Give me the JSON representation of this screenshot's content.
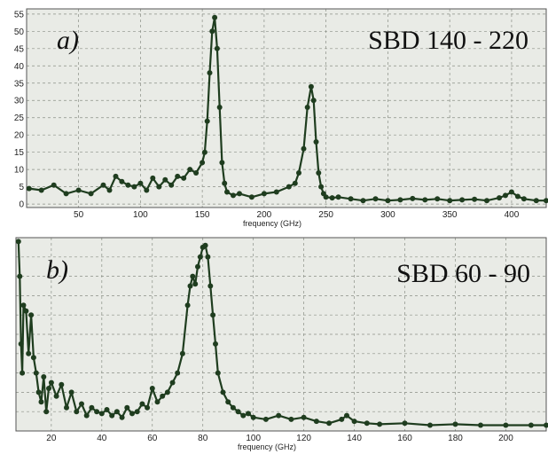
{
  "chart_data": [
    {
      "type": "scatter",
      "panel_label": "a)",
      "title": "SBD 140 - 220",
      "xlabel": "frequency (GHz)",
      "ylabel": "",
      "xlim": [
        8,
        428
      ],
      "ylim": [
        -1,
        56.5
      ],
      "xticks": [
        50,
        100,
        150,
        200,
        250,
        300,
        350,
        400
      ],
      "yticks": [
        0,
        5,
        10,
        15,
        20,
        25,
        30,
        35,
        40,
        45,
        50,
        55
      ],
      "grid": true,
      "marker_color": "#1f3d1f",
      "background": "#e9ebe6",
      "series": [
        {
          "x": [
            10,
            20,
            30,
            40,
            50,
            60,
            70,
            75,
            80,
            85,
            90,
            95,
            100,
            105,
            110,
            115,
            120,
            125,
            130,
            135,
            140,
            145,
            150,
            152,
            154,
            156,
            158,
            160,
            162,
            164,
            166,
            168,
            170,
            175,
            180,
            190,
            200,
            210,
            220,
            225,
            228,
            232,
            235,
            238,
            240,
            242,
            244,
            246,
            248,
            250,
            255,
            260,
            270,
            280,
            290,
            300,
            310,
            320,
            330,
            340,
            350,
            360,
            370,
            380,
            390,
            395,
            400,
            405,
            410,
            420,
            428
          ],
          "y": [
            4.5,
            4,
            5.5,
            3,
            4,
            3,
            5.5,
            4,
            8,
            6.5,
            5.5,
            5,
            6,
            4,
            7.5,
            5,
            7,
            5.5,
            8,
            7.5,
            10,
            9,
            12,
            15,
            24,
            38,
            50,
            54,
            45,
            28,
            12,
            6,
            3.5,
            2.5,
            3,
            2,
            3,
            3.5,
            5,
            6,
            9,
            16,
            28,
            34,
            30,
            18,
            9,
            5,
            3,
            2,
            1.8,
            2,
            1.5,
            1,
            1.5,
            1,
            1.2,
            1.6,
            1.2,
            1.5,
            1,
            1.2,
            1.4,
            1,
            1.8,
            2.5,
            3.5,
            2.2,
            1.5,
            1,
            1
          ]
        }
      ]
    },
    {
      "type": "scatter",
      "panel_label": "b)",
      "title": "SBD 60 - 90",
      "xlabel": "frequency (GHz)",
      "ylabel": "",
      "xlim": [
        6,
        216
      ],
      "ylim": [
        0,
        100
      ],
      "xticks": [
        20,
        40,
        60,
        80,
        100,
        120,
        140,
        160,
        180,
        200
      ],
      "grid": true,
      "marker_color": "#1f3d1f",
      "background": "#e9ebe6",
      "series": [
        {
          "x": [
            7,
            7.5,
            8,
            8.5,
            9,
            10,
            11,
            12,
            13,
            14,
            15,
            16,
            17,
            18,
            19,
            20,
            22,
            24,
            26,
            28,
            30,
            32,
            34,
            36,
            38,
            40,
            42,
            44,
            46,
            48,
            50,
            52,
            54,
            56,
            58,
            60,
            62,
            64,
            66,
            68,
            70,
            72,
            74,
            75,
            76,
            77,
            78,
            79,
            80,
            81,
            82,
            83,
            84,
            85,
            86,
            88,
            90,
            92,
            94,
            96,
            98,
            100,
            105,
            110,
            115,
            120,
            125,
            130,
            135,
            137,
            140,
            145,
            150,
            160,
            170,
            180,
            190,
            200,
            210,
            216
          ],
          "y": [
            98,
            80,
            45,
            30,
            65,
            62,
            40,
            60,
            38,
            30,
            20,
            15,
            28,
            10,
            22,
            25,
            18,
            24,
            12,
            20,
            10,
            14,
            8,
            12,
            10,
            9,
            11,
            8,
            10,
            7,
            12,
            9,
            10,
            14,
            12,
            22,
            15,
            18,
            20,
            25,
            30,
            40,
            65,
            75,
            80,
            76,
            85,
            90,
            95,
            96,
            90,
            75,
            60,
            45,
            30,
            20,
            15,
            12,
            10,
            8,
            9,
            7,
            6,
            8,
            6,
            7,
            5,
            4,
            6,
            8,
            5,
            4,
            3.5,
            4,
            3,
            3.5,
            3,
            3,
            3,
            3
          ]
        }
      ]
    }
  ]
}
